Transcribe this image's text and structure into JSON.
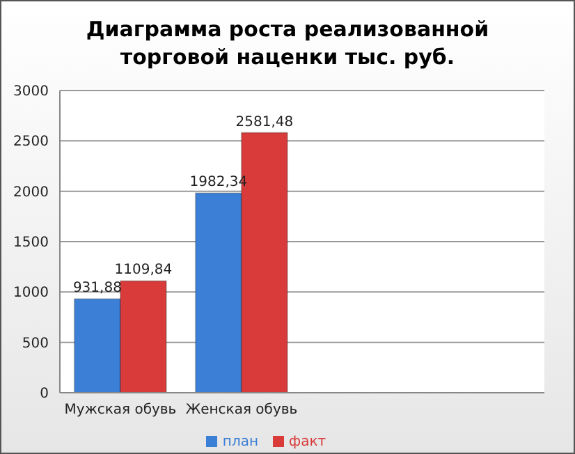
{
  "chart_data": {
    "type": "bar",
    "title": "Диаграмма роста реализованной торговой наценки тыс. руб.",
    "categories": [
      "Мужская обувь",
      "Женская обувь",
      null,
      null
    ],
    "series": [
      {
        "name": "план",
        "color": "#3b7fd6",
        "values": [
          931.88,
          1982.34,
          null,
          null
        ],
        "value_labels": [
          "931,88",
          "1982,34",
          null,
          null
        ]
      },
      {
        "name": "факт",
        "color": "#d93b3b",
        "values": [
          1109.84,
          2581.48,
          null,
          null
        ],
        "value_labels": [
          "1109,84",
          "2581,48",
          null,
          null
        ]
      }
    ],
    "ylim": [
      0,
      3000
    ],
    "yticks": [
      0,
      500,
      1000,
      1500,
      2000,
      2500,
      3000
    ],
    "grid": "y",
    "legend": "bottom"
  }
}
